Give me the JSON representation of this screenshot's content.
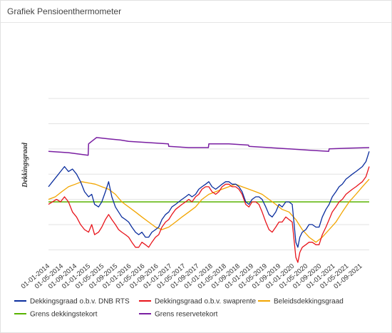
{
  "page_title": "Grafiek Pensioenthermometer",
  "colors": {
    "dnb": "#0b2e9e",
    "swap": "#e8141b",
    "beleids": "#f2a500",
    "grens_tekort": "#59b300",
    "grens_reserve": "#7a1fa2",
    "grid": "#e3e3e3"
  },
  "chart_data": {
    "type": "line",
    "title": "",
    "xlabel": "",
    "ylabel": "Dekkingsgraad",
    "x_ticks": [
      "01-01-2014",
      "01-05-2014",
      "01-09-2014",
      "01-01-2015",
      "01-05-2015",
      "01-09-2015",
      "01-01-2016",
      "01-05-2016",
      "01-09-2016",
      "01-01-2017",
      "01-05-2017",
      "01-09-2017",
      "01-01-2018",
      "01-05-2018",
      "01-09-2018",
      "01-01-2019",
      "01-05-2019",
      "01-09-2019",
      "01-01-2020",
      "01-05-2020",
      "01-09-2020",
      "01-01-2021",
      "01-05-2021",
      "01-09-2021"
    ],
    "y_ticks_shown": false,
    "ylim": [
      80,
      160
    ],
    "gridlines": [
      85,
      95,
      105,
      115,
      125,
      135,
      145
    ],
    "legend_position": "bottom",
    "series": [
      {
        "name": "Dekkingsgraad o.b.v. DNB RTS",
        "color_key": "dnb",
        "values": [
          [
            2014.0,
            110
          ],
          [
            2014.1,
            112
          ],
          [
            2014.2,
            114
          ],
          [
            2014.3,
            116
          ],
          [
            2014.4,
            118
          ],
          [
            2014.5,
            116
          ],
          [
            2014.6,
            117
          ],
          [
            2014.7,
            115
          ],
          [
            2014.8,
            112
          ],
          [
            2014.9,
            108
          ],
          [
            2015.0,
            106
          ],
          [
            2015.08,
            107
          ],
          [
            2015.15,
            103
          ],
          [
            2015.25,
            102
          ],
          [
            2015.33,
            104
          ],
          [
            2015.42,
            108
          ],
          [
            2015.5,
            112
          ],
          [
            2015.58,
            106
          ],
          [
            2015.67,
            102
          ],
          [
            2015.75,
            100
          ],
          [
            2015.83,
            98
          ],
          [
            2015.92,
            97
          ],
          [
            2016.0,
            96
          ],
          [
            2016.08,
            94
          ],
          [
            2016.17,
            92
          ],
          [
            2016.25,
            91
          ],
          [
            2016.33,
            92
          ],
          [
            2016.42,
            90
          ],
          [
            2016.5,
            90
          ],
          [
            2016.58,
            92
          ],
          [
            2016.67,
            93
          ],
          [
            2016.75,
            94
          ],
          [
            2016.83,
            97
          ],
          [
            2016.92,
            99
          ],
          [
            2017.0,
            100
          ],
          [
            2017.08,
            102
          ],
          [
            2017.17,
            103
          ],
          [
            2017.25,
            104
          ],
          [
            2017.33,
            105
          ],
          [
            2017.42,
            106
          ],
          [
            2017.5,
            107
          ],
          [
            2017.58,
            106
          ],
          [
            2017.67,
            107
          ],
          [
            2017.75,
            109
          ],
          [
            2017.83,
            110
          ],
          [
            2017.92,
            111
          ],
          [
            2018.0,
            112
          ],
          [
            2018.08,
            110
          ],
          [
            2018.17,
            109
          ],
          [
            2018.25,
            110
          ],
          [
            2018.33,
            111
          ],
          [
            2018.42,
            112
          ],
          [
            2018.5,
            112
          ],
          [
            2018.58,
            111
          ],
          [
            2018.67,
            111
          ],
          [
            2018.75,
            110
          ],
          [
            2018.83,
            108
          ],
          [
            2018.92,
            104
          ],
          [
            2019.0,
            103
          ],
          [
            2019.08,
            105
          ],
          [
            2019.17,
            106
          ],
          [
            2019.25,
            106
          ],
          [
            2019.33,
            105
          ],
          [
            2019.42,
            102
          ],
          [
            2019.5,
            99
          ],
          [
            2019.58,
            98
          ],
          [
            2019.67,
            100
          ],
          [
            2019.75,
            103
          ],
          [
            2019.83,
            102
          ],
          [
            2019.92,
            104
          ],
          [
            2020.0,
            104
          ],
          [
            2020.08,
            103
          ],
          [
            2020.17,
            88
          ],
          [
            2020.22,
            86
          ],
          [
            2020.27,
            90
          ],
          [
            2020.33,
            92
          ],
          [
            2020.42,
            93
          ],
          [
            2020.5,
            95
          ],
          [
            2020.58,
            95
          ],
          [
            2020.67,
            94
          ],
          [
            2020.75,
            94
          ],
          [
            2020.83,
            98
          ],
          [
            2020.92,
            101
          ],
          [
            2021.0,
            103
          ],
          [
            2021.08,
            106
          ],
          [
            2021.17,
            108
          ],
          [
            2021.25,
            110
          ],
          [
            2021.33,
            111
          ],
          [
            2021.42,
            113
          ],
          [
            2021.5,
            114
          ],
          [
            2021.58,
            115
          ],
          [
            2021.67,
            116
          ],
          [
            2021.75,
            117
          ],
          [
            2021.83,
            118
          ],
          [
            2021.92,
            120
          ],
          [
            2022.0,
            124
          ]
        ]
      },
      {
        "name": "Dekkingsgraad o.b.v. swaprente",
        "color_key": "swap",
        "values": [
          [
            2014.0,
            103
          ],
          [
            2014.1,
            104
          ],
          [
            2014.2,
            105
          ],
          [
            2014.3,
            104
          ],
          [
            2014.4,
            106
          ],
          [
            2014.5,
            104
          ],
          [
            2014.6,
            100
          ],
          [
            2014.7,
            98
          ],
          [
            2014.8,
            95
          ],
          [
            2014.9,
            93
          ],
          [
            2015.0,
            92
          ],
          [
            2015.08,
            95
          ],
          [
            2015.15,
            91
          ],
          [
            2015.25,
            92
          ],
          [
            2015.33,
            94
          ],
          [
            2015.42,
            97
          ],
          [
            2015.5,
            99
          ],
          [
            2015.58,
            97
          ],
          [
            2015.67,
            95
          ],
          [
            2015.75,
            93
          ],
          [
            2015.83,
            92
          ],
          [
            2015.92,
            91
          ],
          [
            2016.0,
            90
          ],
          [
            2016.08,
            88
          ],
          [
            2016.17,
            86
          ],
          [
            2016.25,
            86
          ],
          [
            2016.33,
            88
          ],
          [
            2016.42,
            87
          ],
          [
            2016.5,
            86
          ],
          [
            2016.58,
            88
          ],
          [
            2016.67,
            90
          ],
          [
            2016.75,
            91
          ],
          [
            2016.83,
            94
          ],
          [
            2016.92,
            96
          ],
          [
            2017.0,
            97
          ],
          [
            2017.08,
            99
          ],
          [
            2017.17,
            101
          ],
          [
            2017.25,
            102
          ],
          [
            2017.33,
            103
          ],
          [
            2017.42,
            104
          ],
          [
            2017.5,
            105
          ],
          [
            2017.58,
            104
          ],
          [
            2017.67,
            106
          ],
          [
            2017.75,
            107
          ],
          [
            2017.83,
            109
          ],
          [
            2017.92,
            110
          ],
          [
            2018.0,
            110
          ],
          [
            2018.08,
            108
          ],
          [
            2018.17,
            107
          ],
          [
            2018.25,
            108
          ],
          [
            2018.33,
            110
          ],
          [
            2018.42,
            111
          ],
          [
            2018.5,
            111
          ],
          [
            2018.58,
            110
          ],
          [
            2018.67,
            110
          ],
          [
            2018.75,
            109
          ],
          [
            2018.83,
            107
          ],
          [
            2018.92,
            103
          ],
          [
            2019.0,
            102
          ],
          [
            2019.08,
            104
          ],
          [
            2019.17,
            104
          ],
          [
            2019.25,
            103
          ],
          [
            2019.33,
            100
          ],
          [
            2019.42,
            96
          ],
          [
            2019.5,
            93
          ],
          [
            2019.58,
            92
          ],
          [
            2019.67,
            94
          ],
          [
            2019.75,
            96
          ],
          [
            2019.83,
            96
          ],
          [
            2019.92,
            98
          ],
          [
            2020.0,
            97
          ],
          [
            2020.08,
            96
          ],
          [
            2020.17,
            82
          ],
          [
            2020.22,
            80
          ],
          [
            2020.27,
            84
          ],
          [
            2020.33,
            86
          ],
          [
            2020.42,
            87
          ],
          [
            2020.5,
            88
          ],
          [
            2020.58,
            88
          ],
          [
            2020.67,
            87
          ],
          [
            2020.75,
            87
          ],
          [
            2020.83,
            91
          ],
          [
            2020.92,
            94
          ],
          [
            2021.0,
            97
          ],
          [
            2021.08,
            100
          ],
          [
            2021.17,
            102
          ],
          [
            2021.25,
            104
          ],
          [
            2021.33,
            105
          ],
          [
            2021.42,
            107
          ],
          [
            2021.5,
            108
          ],
          [
            2021.58,
            109
          ],
          [
            2021.67,
            110
          ],
          [
            2021.75,
            111
          ],
          [
            2021.83,
            112
          ],
          [
            2021.92,
            114
          ],
          [
            2022.0,
            118
          ]
        ]
      },
      {
        "name": "Beleidsdekkingsgraad",
        "color_key": "beleids",
        "values": [
          [
            2014.0,
            105
          ],
          [
            2014.17,
            106
          ],
          [
            2014.33,
            108
          ],
          [
            2014.5,
            110
          ],
          [
            2014.67,
            111
          ],
          [
            2014.83,
            112
          ],
          [
            2015.0,
            111.5
          ],
          [
            2015.17,
            111
          ],
          [
            2015.33,
            110
          ],
          [
            2015.5,
            109
          ],
          [
            2015.67,
            107
          ],
          [
            2015.83,
            104
          ],
          [
            2016.0,
            102
          ],
          [
            2016.17,
            100
          ],
          [
            2016.33,
            98
          ],
          [
            2016.5,
            96
          ],
          [
            2016.67,
            94
          ],
          [
            2016.83,
            93
          ],
          [
            2017.0,
            94
          ],
          [
            2017.17,
            96
          ],
          [
            2017.33,
            98
          ],
          [
            2017.5,
            100
          ],
          [
            2017.67,
            102
          ],
          [
            2017.83,
            105
          ],
          [
            2018.0,
            107
          ],
          [
            2018.17,
            108
          ],
          [
            2018.33,
            109
          ],
          [
            2018.5,
            110
          ],
          [
            2018.67,
            111
          ],
          [
            2018.83,
            110
          ],
          [
            2019.0,
            109
          ],
          [
            2019.17,
            108
          ],
          [
            2019.33,
            107
          ],
          [
            2019.5,
            105
          ],
          [
            2019.67,
            103
          ],
          [
            2019.83,
            101
          ],
          [
            2020.0,
            100
          ],
          [
            2020.17,
            97
          ],
          [
            2020.33,
            93
          ],
          [
            2020.5,
            90
          ],
          [
            2020.67,
            88
          ],
          [
            2020.83,
            90
          ],
          [
            2021.0,
            93
          ],
          [
            2021.17,
            96
          ],
          [
            2021.33,
            100
          ],
          [
            2021.5,
            104
          ],
          [
            2021.67,
            107
          ],
          [
            2021.83,
            110
          ],
          [
            2022.0,
            113
          ]
        ]
      },
      {
        "name": "Grens dekkingstekort",
        "color_key": "grens_tekort",
        "values": [
          [
            2014.0,
            104
          ],
          [
            2022.0,
            104
          ]
        ]
      },
      {
        "name": "Grens reservetekort",
        "color_key": "grens_reserve",
        "values": [
          [
            2014.0,
            124
          ],
          [
            2014.5,
            123.5
          ],
          [
            2014.99,
            122.5
          ],
          [
            2015.0,
            127
          ],
          [
            2015.08,
            128
          ],
          [
            2015.2,
            129.5
          ],
          [
            2015.5,
            129
          ],
          [
            2015.8,
            128.5
          ],
          [
            2016.0,
            128
          ],
          [
            2016.5,
            127.5
          ],
          [
            2016.99,
            127
          ],
          [
            2017.0,
            126
          ],
          [
            2017.5,
            125.5
          ],
          [
            2017.99,
            125.5
          ],
          [
            2018.0,
            127
          ],
          [
            2018.5,
            127
          ],
          [
            2018.99,
            126.5
          ],
          [
            2019.0,
            126
          ],
          [
            2019.5,
            125.5
          ],
          [
            2019.99,
            125
          ],
          [
            2020.0,
            125
          ],
          [
            2020.5,
            124.5
          ],
          [
            2020.99,
            124
          ],
          [
            2021.0,
            125
          ],
          [
            2021.5,
            125.3
          ],
          [
            2022.0,
            125.5
          ]
        ]
      }
    ]
  }
}
